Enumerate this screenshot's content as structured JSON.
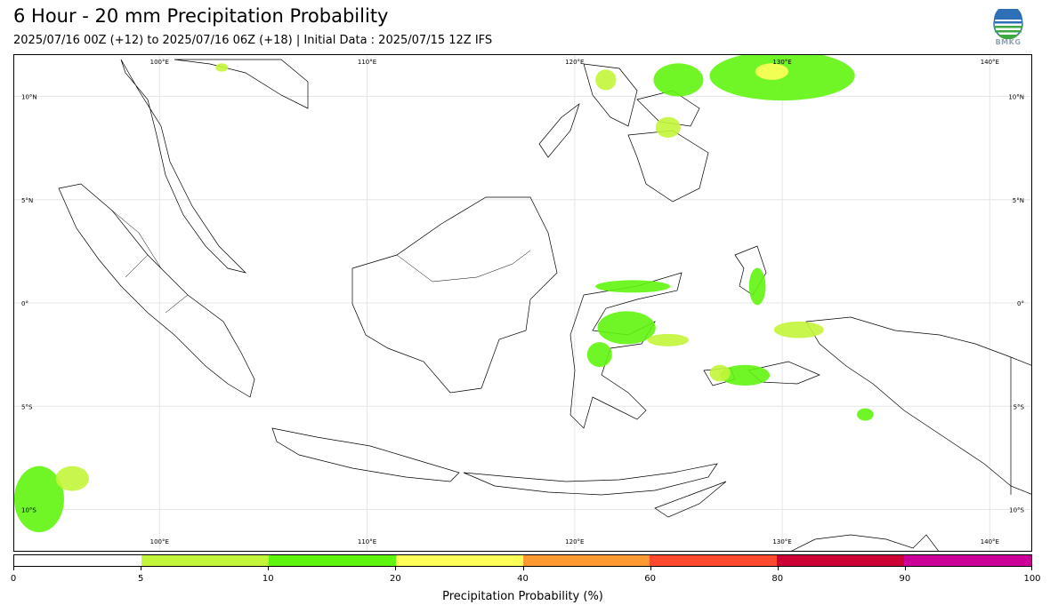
{
  "title": "6 Hour - 20 mm Precipitation Probability",
  "subtitle": "2025/07/16 00Z (+12) to 2025/07/16 06Z (+18) | Initial Data : 2025/07/15 12Z IFS",
  "logo": {
    "text": "BMKG",
    "icon": "bmkg-logo-icon"
  },
  "map": {
    "lon_range": [
      93,
      142
    ],
    "lat_range": [
      -12,
      12
    ],
    "grid": true,
    "lon_ticks": [
      {
        "value": 100,
        "label": "100°E"
      },
      {
        "value": 110,
        "label": "110°E"
      },
      {
        "value": 120,
        "label": "120°E"
      },
      {
        "value": 130,
        "label": "130°E"
      },
      {
        "value": 140,
        "label": "140°E"
      }
    ],
    "lat_ticks": [
      {
        "value": 10,
        "label": "10°N"
      },
      {
        "value": 5,
        "label": "5°N"
      },
      {
        "value": 0,
        "label": "0°"
      },
      {
        "value": -5,
        "label": "5°S"
      },
      {
        "value": -10,
        "label": "10°S"
      }
    ]
  },
  "colorbar": {
    "label": "Precipitation Probability (%)",
    "bounds": [
      0,
      5,
      10,
      20,
      40,
      60,
      80,
      90,
      100
    ],
    "colors": [
      "#ffffff",
      "#c3f53a",
      "#60f50f",
      "#ffff5a",
      "#ff9a32",
      "#ff4a2f",
      "#cc0033",
      "#cc0099"
    ]
  },
  "precip_areas": [
    {
      "lon": 130,
      "lat": 11,
      "rx": 3.5,
      "ry": 1.2,
      "prob": 10
    },
    {
      "lon": 129.5,
      "lat": 11.2,
      "rx": 0.8,
      "ry": 0.4,
      "prob": 20
    },
    {
      "lon": 125,
      "lat": 10.8,
      "rx": 1.2,
      "ry": 0.8,
      "prob": 10
    },
    {
      "lon": 124.5,
      "lat": 8.5,
      "rx": 0.6,
      "ry": 0.5,
      "prob": 5
    },
    {
      "lon": 122.8,
      "lat": 0.8,
      "rx": 1.8,
      "ry": 0.3,
      "prob": 10
    },
    {
      "lon": 122.5,
      "lat": -1.2,
      "rx": 1.4,
      "ry": 0.8,
      "prob": 10
    },
    {
      "lon": 121.2,
      "lat": -2.5,
      "rx": 0.6,
      "ry": 0.6,
      "prob": 10
    },
    {
      "lon": 124.5,
      "lat": -1.8,
      "rx": 1.0,
      "ry": 0.3,
      "prob": 5
    },
    {
      "lon": 128.2,
      "lat": -3.5,
      "rx": 1.2,
      "ry": 0.5,
      "prob": 10
    },
    {
      "lon": 127.0,
      "lat": -3.4,
      "rx": 0.5,
      "ry": 0.4,
      "prob": 5
    },
    {
      "lon": 128.8,
      "lat": 0.8,
      "rx": 0.4,
      "ry": 0.9,
      "prob": 10
    },
    {
      "lon": 130.8,
      "lat": -1.3,
      "rx": 1.2,
      "ry": 0.4,
      "prob": 5
    },
    {
      "lon": 134,
      "lat": -5.4,
      "rx": 0.4,
      "ry": 0.3,
      "prob": 10
    },
    {
      "lon": 94.2,
      "lat": -9.5,
      "rx": 1.2,
      "ry": 1.6,
      "prob": 10
    },
    {
      "lon": 95.8,
      "lat": -8.5,
      "rx": 0.8,
      "ry": 0.6,
      "prob": 5
    },
    {
      "lon": 103,
      "lat": 11.4,
      "rx": 0.3,
      "ry": 0.2,
      "prob": 5
    },
    {
      "lon": 121.5,
      "lat": 10.8,
      "rx": 0.5,
      "ry": 0.5,
      "prob": 5
    }
  ]
}
